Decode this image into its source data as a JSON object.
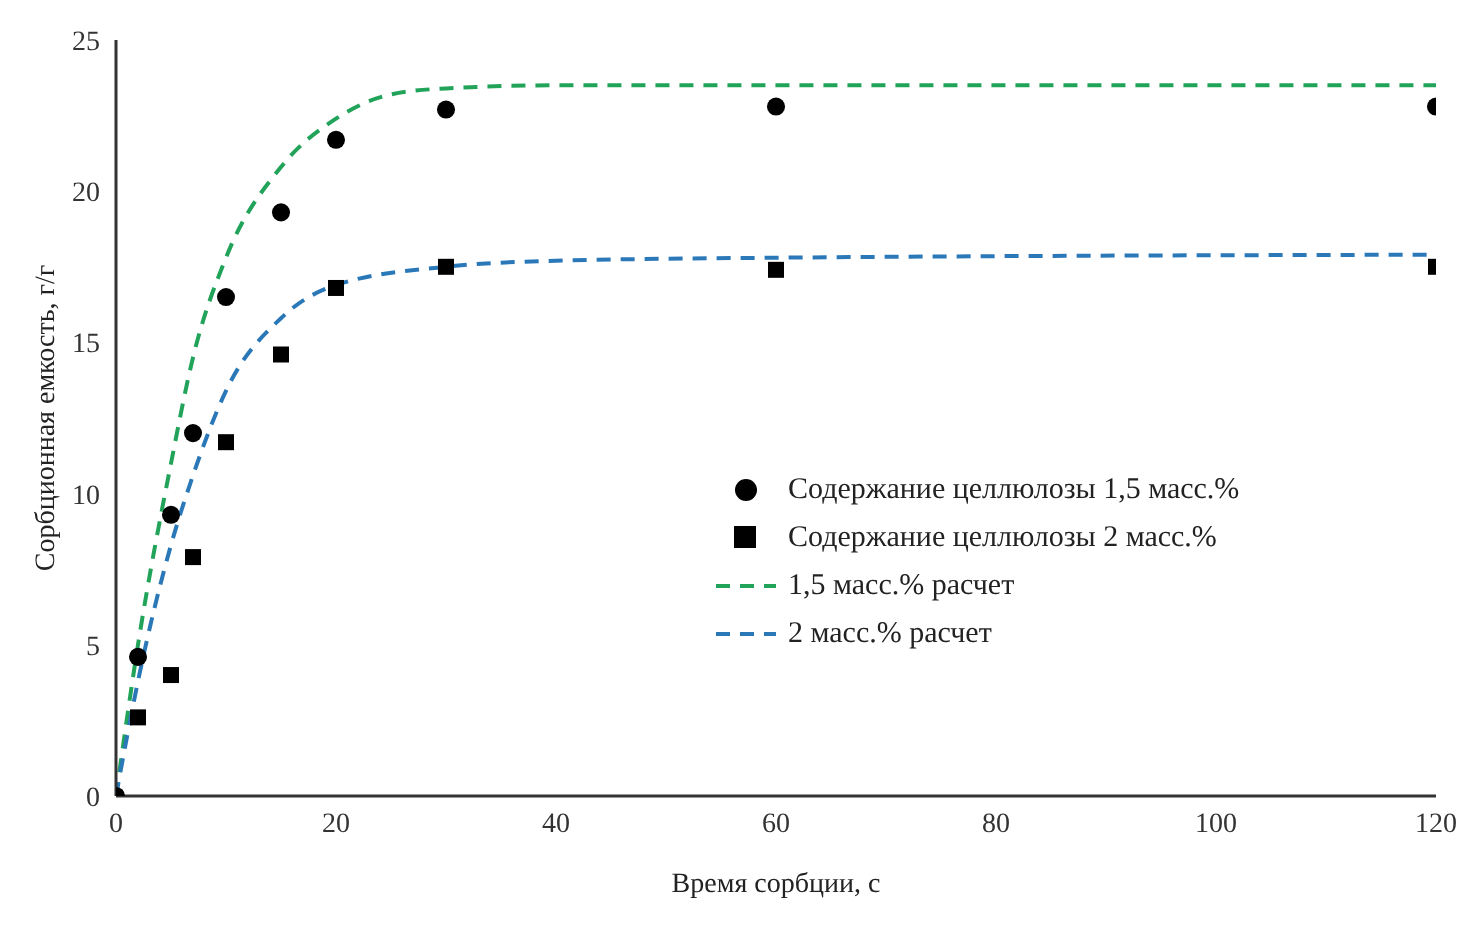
{
  "chart_data": {
    "type": "scatter",
    "xlabel": "Время сорбции, с",
    "ylabel": "Сорбционная емкость, г/г",
    "xlim": [
      0,
      120
    ],
    "xticks": [
      0,
      20,
      40,
      60,
      80,
      100,
      120
    ],
    "ylim": [
      0,
      25
    ],
    "yticks": [
      0,
      5,
      10,
      15,
      20,
      25
    ],
    "grid": false,
    "legend": "right",
    "series": [
      {
        "name": "Содержание целлюлозы 1,5 масс.%",
        "marker": "circle",
        "color": "#000000",
        "x": [
          0,
          2,
          5,
          7,
          10,
          15,
          20,
          30,
          60,
          120
        ],
        "values": [
          0,
          4.6,
          9.3,
          12.0,
          16.5,
          19.3,
          21.7,
          22.7,
          22.8,
          22.8
        ]
      },
      {
        "name": "Содержание целлюлозы 2 масс.%",
        "marker": "square",
        "color": "#000000",
        "x": [
          2,
          5,
          7,
          10,
          15,
          20,
          30,
          60,
          120
        ],
        "values": [
          2.6,
          4.0,
          7.9,
          11.7,
          14.6,
          16.8,
          17.5,
          17.4,
          17.5
        ]
      },
      {
        "name": "1,5 масс.% расчет",
        "type": "line",
        "marker": "none",
        "line_style": "dashed",
        "color": "#22a35a",
        "x": [
          0,
          2,
          5,
          7,
          10,
          15,
          20,
          25,
          30,
          40,
          60,
          120
        ],
        "values": [
          0,
          5.0,
          11.0,
          14.5,
          17.8,
          20.8,
          22.4,
          23.2,
          23.4,
          23.5,
          23.5,
          23.5
        ]
      },
      {
        "name": "2 масс.% расчет",
        "type": "line",
        "marker": "none",
        "line_style": "dashed",
        "color": "#2a78b8",
        "x": [
          0,
          2,
          5,
          7,
          10,
          15,
          20,
          30,
          40,
          60,
          120
        ],
        "values": [
          0,
          3.8,
          8.3,
          10.6,
          13.4,
          15.8,
          16.9,
          17.5,
          17.7,
          17.8,
          17.9
        ]
      }
    ]
  }
}
